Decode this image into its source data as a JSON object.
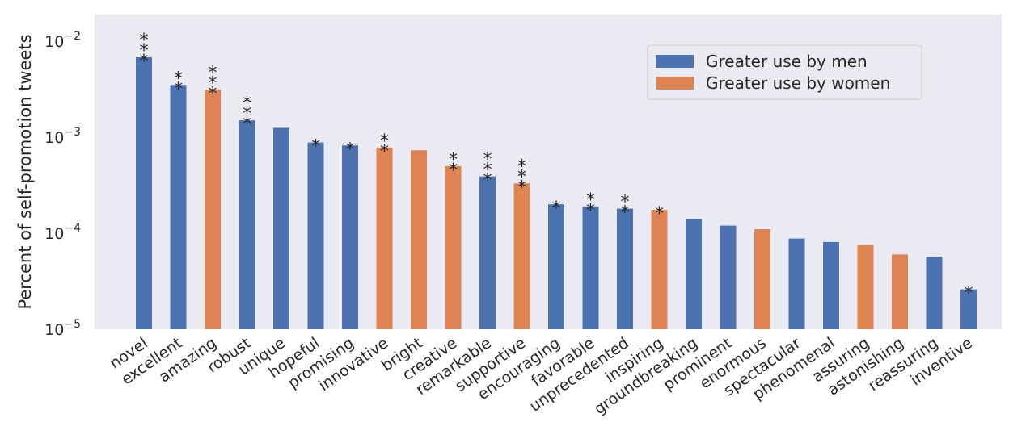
{
  "chart_data": {
    "type": "bar",
    "yscale": "log",
    "ylim": [
      1e-05,
      0.02
    ],
    "grid": false,
    "legend_position": "top-right",
    "ylabel": "Percent of self-promotion tweets",
    "xlabel": "",
    "y_ticks": [
      {
        "value": 1e-05,
        "base": "10",
        "exp": "−5"
      },
      {
        "value": 0.0001,
        "base": "10",
        "exp": "−4"
      },
      {
        "value": 0.001,
        "base": "10",
        "exp": "−3"
      },
      {
        "value": 0.01,
        "base": "10",
        "exp": "−2"
      }
    ],
    "legend": [
      {
        "label": "Greater use by men",
        "group": "men",
        "color": "#4c72b0"
      },
      {
        "label": "Greater use by women",
        "group": "women",
        "color": "#dd8452"
      }
    ],
    "categories": [
      "novel",
      "excellent",
      "amazing",
      "robust",
      "unique",
      "hopeful",
      "promising",
      "innovative",
      "bright",
      "creative",
      "remarkable",
      "supportive",
      "encouraging",
      "favorable",
      "unprecedented",
      "inspiring",
      "groundbreaking",
      "prominent",
      "enormous",
      "spectacular",
      "phenomenal",
      "assuring",
      "astonishing",
      "reassuring",
      "inventive"
    ],
    "values": [
      0.0068,
      0.0035,
      0.0031,
      0.0015,
      0.00125,
      0.00088,
      0.00082,
      0.00078,
      0.00073,
      0.0005,
      0.00039,
      0.00033,
      0.0002,
      0.00019,
      0.00018,
      0.000175,
      0.00014,
      0.00012,
      0.00011,
      8.8e-05,
      8.1e-05,
      7.5e-05,
      6e-05,
      5.7e-05,
      2.6e-05
    ],
    "groups": [
      "men",
      "men",
      "women",
      "men",
      "men",
      "men",
      "men",
      "women",
      "women",
      "women",
      "men",
      "women",
      "men",
      "men",
      "men",
      "women",
      "men",
      "men",
      "women",
      "men",
      "men",
      "women",
      "women",
      "men",
      "men"
    ],
    "significance": [
      3,
      2,
      3,
      3,
      0,
      1,
      1,
      2,
      0,
      2,
      3,
      3,
      1,
      2,
      2,
      1,
      0,
      0,
      0,
      0,
      0,
      0,
      0,
      0,
      1
    ],
    "significance_symbol": "*"
  }
}
